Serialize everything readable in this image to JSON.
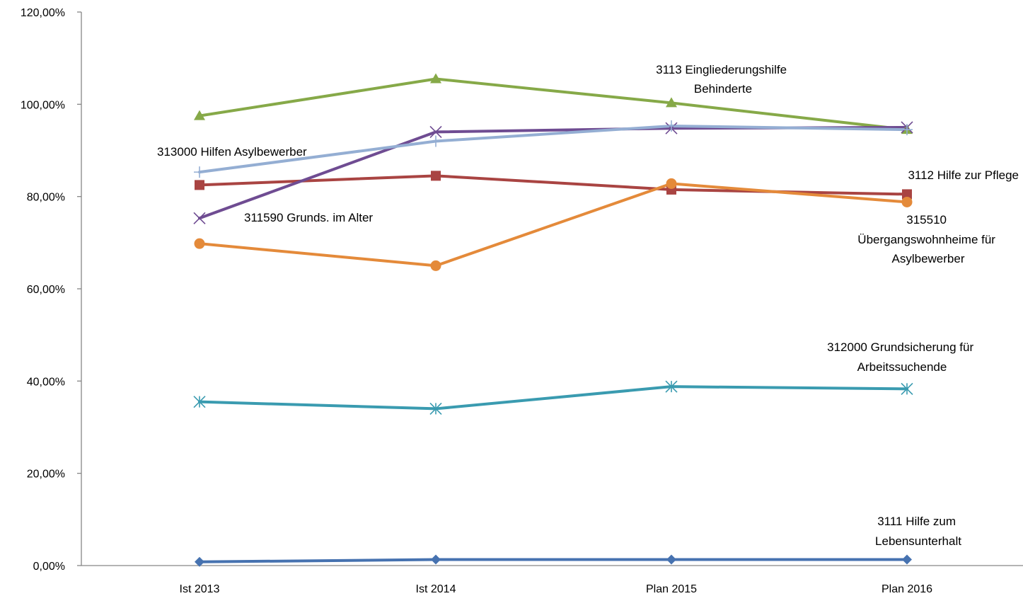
{
  "chart_data": {
    "type": "line",
    "title": "",
    "xlabel": "",
    "ylabel": "",
    "categories": [
      "Ist 2013",
      "Ist 2014",
      "Plan 2015",
      "Plan 2016"
    ],
    "ylim": [
      0,
      120
    ],
    "yticks": [
      0,
      20,
      40,
      60,
      80,
      100,
      120
    ],
    "ytick_labels": [
      "0,00%",
      "20,00%",
      "40,00%",
      "60,00%",
      "80,00%",
      "100,00%",
      "120,00%"
    ],
    "grid": false,
    "legend": "none",
    "series": [
      {
        "name": "3111 Hilfe zum Lebensunterhalt",
        "color": "#4672B0",
        "marker": "diamond",
        "values": [
          0.8,
          1.3,
          1.3,
          1.3
        ]
      },
      {
        "name": "3112 Hilfe zur Pflege",
        "color": "#A94442",
        "marker": "square",
        "values": [
          82.5,
          84.5,
          81.5,
          80.5
        ]
      },
      {
        "name": "3113 Eingliederungshilfe Behinderte",
        "color": "#86A948",
        "marker": "triangle",
        "values": [
          97.5,
          105.5,
          100.3,
          94.5
        ]
      },
      {
        "name": "311590 Grunds. im Alter",
        "color": "#6F4C92",
        "marker": "x",
        "values": [
          75.3,
          94.0,
          94.8,
          95.0
        ]
      },
      {
        "name": "312000 Grundsicherung für Arbeitssuchende",
        "color": "#3A9BB0",
        "marker": "star",
        "values": [
          35.5,
          34.0,
          38.8,
          38.3
        ]
      },
      {
        "name": "313000 Hilfen Asylbewerber",
        "color": "#94AED3",
        "marker": "plus",
        "values": [
          85.3,
          92.0,
          95.3,
          94.5
        ]
      },
      {
        "name": "315510 Übergangswohnheime für Asylbewerber",
        "color": "#E48A3A",
        "marker": "circle",
        "values": [
          69.8,
          65.0,
          82.8,
          78.8
        ]
      }
    ],
    "annotations": [
      {
        "id": "ann-3113",
        "lines": [
          "3113 Eingliederungshilfe",
          "Behinderte"
        ]
      },
      {
        "id": "ann-313000",
        "lines": [
          "313000  Hilfen Asylbewerber"
        ]
      },
      {
        "id": "ann-3112",
        "lines": [
          "3112 Hilfe zur Pflege"
        ]
      },
      {
        "id": "ann-311590",
        "lines": [
          "311590 Grunds. im Alter"
        ]
      },
      {
        "id": "ann-315510",
        "lines": [
          "315510",
          "Übergangswohnheime  für",
          "Asylbewerber"
        ]
      },
      {
        "id": "ann-312000",
        "lines": [
          "312000 Grundsicherung für",
          "Arbeitssuchende"
        ]
      },
      {
        "id": "ann-3111",
        "lines": [
          "3111 Hilfe zum",
          "Lebensunterhalt"
        ]
      }
    ]
  }
}
